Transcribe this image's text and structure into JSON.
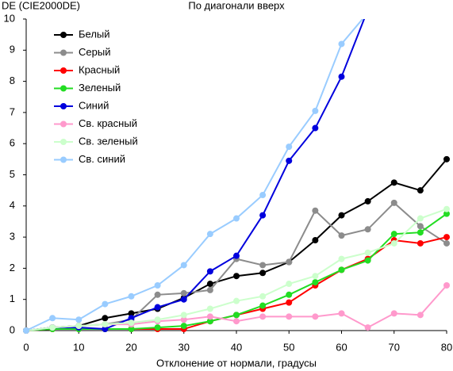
{
  "chart_data": {
    "type": "line",
    "title": "По диагонали вверх",
    "y_label": "DE (CIE2000DE)",
    "x_label": "Отклонение от нормали, градусы",
    "x": [
      0,
      5,
      10,
      15,
      20,
      25,
      30,
      35,
      40,
      45,
      50,
      55,
      60,
      65,
      70,
      75,
      80
    ],
    "xlim": [
      0,
      80
    ],
    "xticks": [
      0,
      10,
      20,
      30,
      40,
      50,
      60,
      70,
      80
    ],
    "ylim": [
      0,
      10
    ],
    "yticks": [
      0,
      1,
      2,
      3,
      4,
      5,
      6,
      7,
      8,
      9,
      10
    ],
    "grid": false,
    "legend": "upper left",
    "series": [
      {
        "name": "Белый",
        "color": "#000000",
        "values": [
          0,
          0.1,
          0.15,
          0.4,
          0.55,
          0.7,
          1.05,
          1.5,
          1.75,
          1.85,
          2.2,
          2.9,
          3.7,
          4.15,
          4.75,
          4.5,
          5.5
        ]
      },
      {
        "name": "Серый",
        "color": "#8c8c8c",
        "values": [
          0,
          0.1,
          0.15,
          0.2,
          0.35,
          1.15,
          1.2,
          1.3,
          2.3,
          2.1,
          2.2,
          3.85,
          3.05,
          3.25,
          4.1,
          3.35,
          2.8
        ]
      },
      {
        "name": "Красный",
        "color": "#ff0000",
        "values": [
          0,
          0.05,
          0.05,
          0.05,
          0.05,
          0.05,
          0.05,
          0.3,
          0.5,
          0.7,
          0.9,
          1.45,
          1.95,
          2.3,
          2.9,
          2.8,
          3.0
        ]
      },
      {
        "name": "Зеленый",
        "color": "#22dd22",
        "values": [
          0,
          0.05,
          0.05,
          0.05,
          0.05,
          0.1,
          0.15,
          0.3,
          0.5,
          0.8,
          1.15,
          1.55,
          1.95,
          2.25,
          3.1,
          3.15,
          3.75
        ]
      },
      {
        "name": "Синий",
        "color": "#0000dd",
        "values": [
          0,
          0.1,
          0.1,
          0.05,
          0.4,
          0.75,
          1.0,
          1.9,
          2.4,
          3.7,
          5.45,
          6.5,
          8.15,
          10.3,
          null,
          null,
          null
        ]
      },
      {
        "name": "Св. красный",
        "color": "#ff99cc",
        "values": [
          0,
          0.1,
          0.15,
          0.2,
          0.2,
          0.3,
          0.35,
          0.45,
          0.3,
          0.45,
          0.45,
          0.45,
          0.55,
          0.1,
          0.55,
          0.5,
          1.45
        ]
      },
      {
        "name": "Св. зеленый",
        "color": "#ccffcc",
        "values": [
          0,
          0.1,
          0.15,
          0.2,
          0.25,
          0.35,
          0.5,
          0.7,
          0.95,
          1.1,
          1.5,
          1.75,
          2.3,
          2.5,
          2.8,
          3.6,
          3.9
        ]
      },
      {
        "name": "Св. синий",
        "color": "#99ccff",
        "values": [
          0,
          0.4,
          0.35,
          0.85,
          1.1,
          1.45,
          2.1,
          3.1,
          3.6,
          4.35,
          5.9,
          7.05,
          9.2,
          10.2,
          null,
          null,
          null
        ]
      }
    ]
  }
}
